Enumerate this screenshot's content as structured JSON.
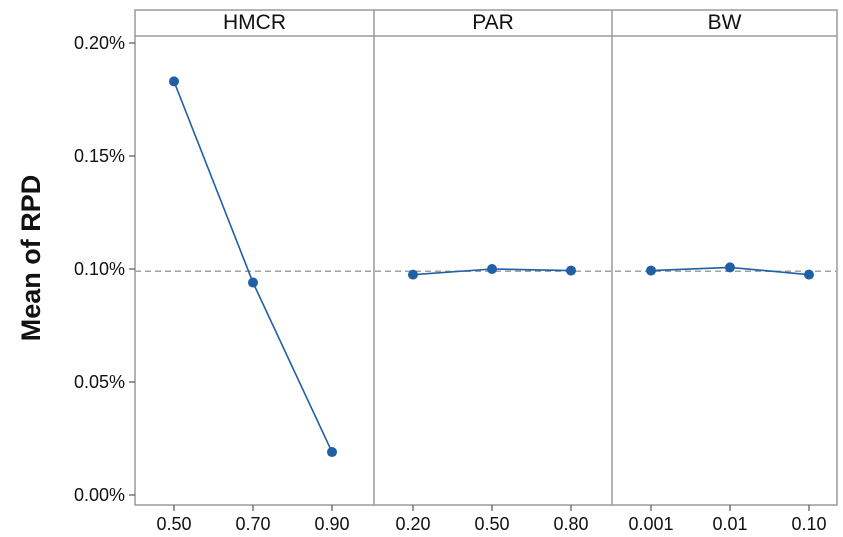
{
  "chart_data": {
    "type": "line",
    "ylabel": "Mean of RPD",
    "ylim": [
      0,
      0.2
    ],
    "yticks": [
      0.0,
      0.05,
      0.1,
      0.15,
      0.2
    ],
    "ytick_labels": [
      "0.00%",
      "0.05%",
      "0.10%",
      "0.15%",
      "0.20%"
    ],
    "reference_line": 0.099,
    "grid": false,
    "colors": {
      "series": "#1f5fa6",
      "reference": "#a0a0a0",
      "frame": "#9a9a9a"
    },
    "panels": [
      {
        "title": "HMCR",
        "categories": [
          "0.50",
          "0.70",
          "0.90"
        ],
        "values": [
          0.183,
          0.094,
          0.019
        ]
      },
      {
        "title": "PAR",
        "categories": [
          "0.20",
          "0.50",
          "0.80"
        ],
        "values": [
          0.0975,
          0.1,
          0.0993
        ]
      },
      {
        "title": "BW",
        "categories": [
          "0.001",
          "0.01",
          "0.10"
        ],
        "values": [
          0.0993,
          0.1007,
          0.0975
        ]
      }
    ]
  }
}
